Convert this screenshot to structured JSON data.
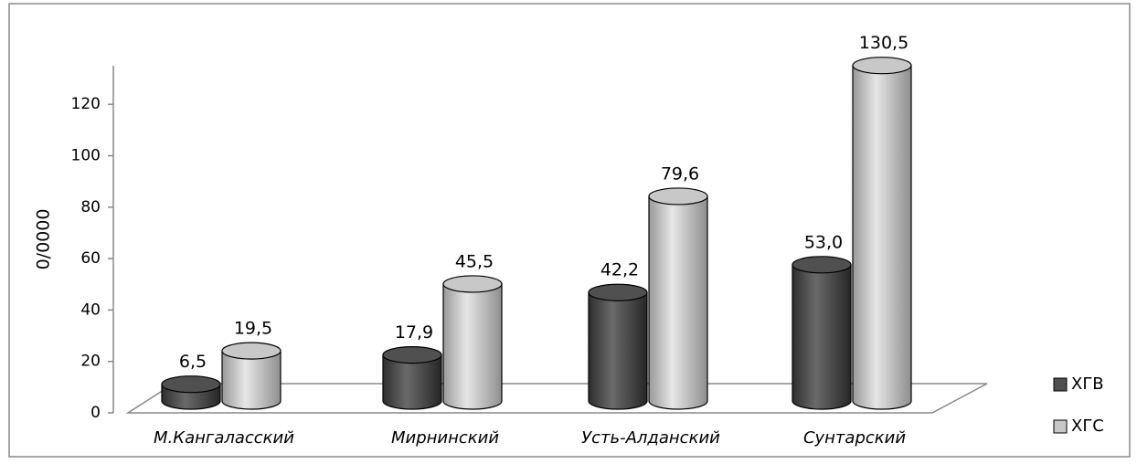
{
  "chart_data": {
    "type": "bar3d",
    "ylabel": "0/0000",
    "categories": [
      "М.Кангаласский",
      "Мирнинский",
      "Усть-Алданский",
      "Сунтарский"
    ],
    "series": [
      {
        "name": "ХГВ",
        "color": "#505050",
        "values": [
          6.5,
          17.9,
          42.2,
          53.0
        ],
        "value_labels": [
          "6,5",
          "17,9",
          "42,2",
          "53,0"
        ]
      },
      {
        "name": "ХГС",
        "color": "#c8c8c8",
        "values": [
          19.5,
          45.5,
          79.6,
          130.5
        ],
        "value_labels": [
          "19,5",
          "45,5",
          "79,6",
          "130,5"
        ]
      }
    ],
    "ylim": [
      0,
      135
    ],
    "yticks": [
      0,
      20,
      40,
      60,
      80,
      100,
      120
    ],
    "legend": "right"
  }
}
